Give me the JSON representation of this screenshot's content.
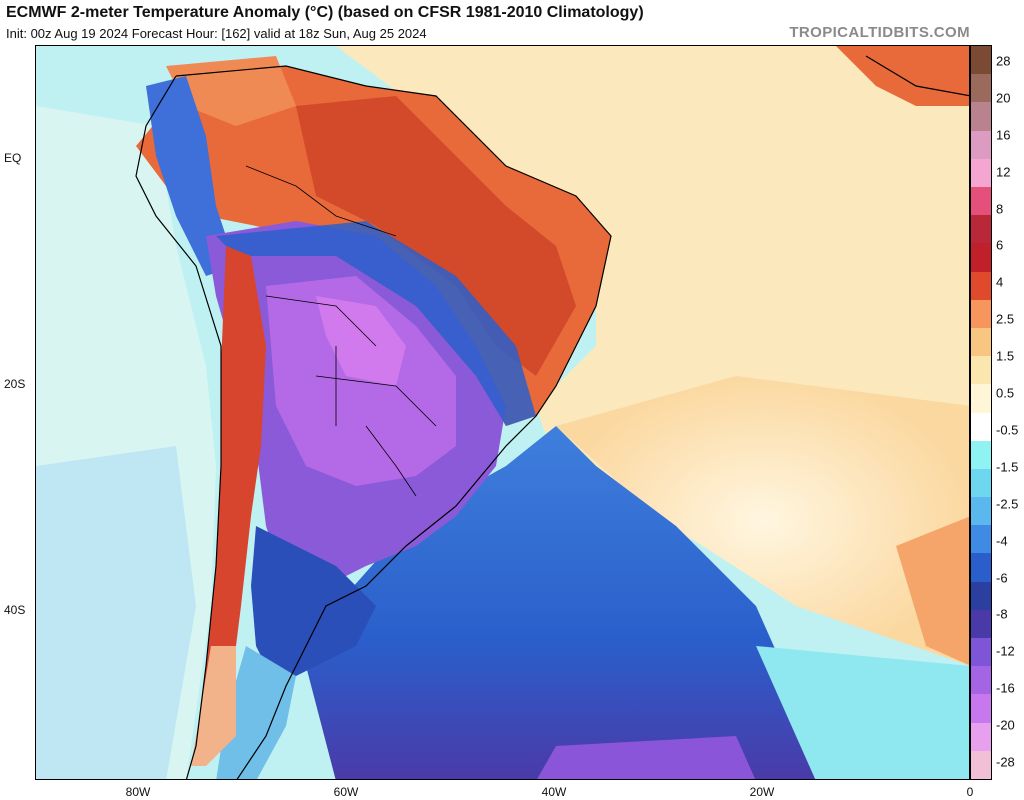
{
  "header": {
    "title": "ECMWF 2-meter Temperature Anomaly (°C) (based on CFSR 1981-2010 Climatology)",
    "subtitle": "Init: 00z Aug 19 2024   Forecast Hour: [162]   valid at 18z Sun, Aug 25 2024",
    "brand": "TROPICALTIDBITS.COM"
  },
  "axes": {
    "lat_labels": [
      "EQ",
      "20S",
      "40S"
    ],
    "lon_labels": [
      "80W",
      "60W",
      "40W",
      "20W",
      "0"
    ]
  },
  "colorbar": {
    "labels": [
      "28",
      "20",
      "16",
      "12",
      "8",
      "6",
      "4",
      "2.5",
      "1.5",
      "0.5",
      "-0.5",
      "-1.5",
      "-2.5",
      "-4",
      "-6",
      "-8",
      "-12",
      "-16",
      "-20",
      "-28"
    ],
    "colors": [
      "#7a4a33",
      "#9a6a5c",
      "#b8838f",
      "#dc9bc0",
      "#f4a6d0",
      "#e4507a",
      "#b82838",
      "#c0202a",
      "#e04a2c",
      "#f6955c",
      "#f9c682",
      "#fbe7ae",
      "#fff6d8",
      "#ffffff",
      "#8ff3f3",
      "#6fd6f0",
      "#5ab8ee",
      "#3f8ae2",
      "#2a5fcb",
      "#2a3f9e",
      "#4a3aa8",
      "#7e55d6",
      "#a465e4",
      "#c878ee",
      "#e6a0ee",
      "#f2c0d6"
    ]
  },
  "map": {
    "region": "South America and South Atlantic"
  }
}
